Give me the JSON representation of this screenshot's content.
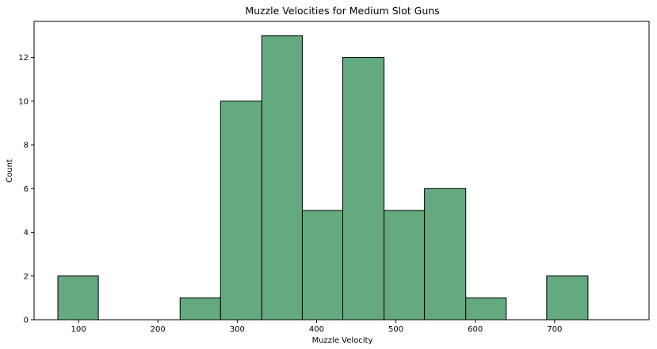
{
  "chart_data": {
    "type": "bar",
    "subtype": "histogram",
    "title": "Muzzle Velocities for Medium Slot Guns",
    "xlabel": "Muzzle Velocity",
    "ylabel": "Count",
    "xlim": [
      44,
      819
    ],
    "ylim": [
      0,
      13.65
    ],
    "x_ticks": [
      100,
      200,
      300,
      400,
      500,
      600,
      700
    ],
    "y_ticks": [
      0,
      2,
      4,
      6,
      8,
      10,
      12
    ],
    "bin_edges": [
      74,
      125,
      177,
      228,
      279,
      331,
      382,
      433,
      485,
      536,
      588,
      639,
      690,
      742
    ],
    "counts": [
      2,
      0,
      0,
      1,
      10,
      13,
      5,
      12,
      5,
      6,
      1,
      0,
      2
    ],
    "grid": false,
    "bar_color": "#64a97f",
    "edge_color": "#000000"
  }
}
